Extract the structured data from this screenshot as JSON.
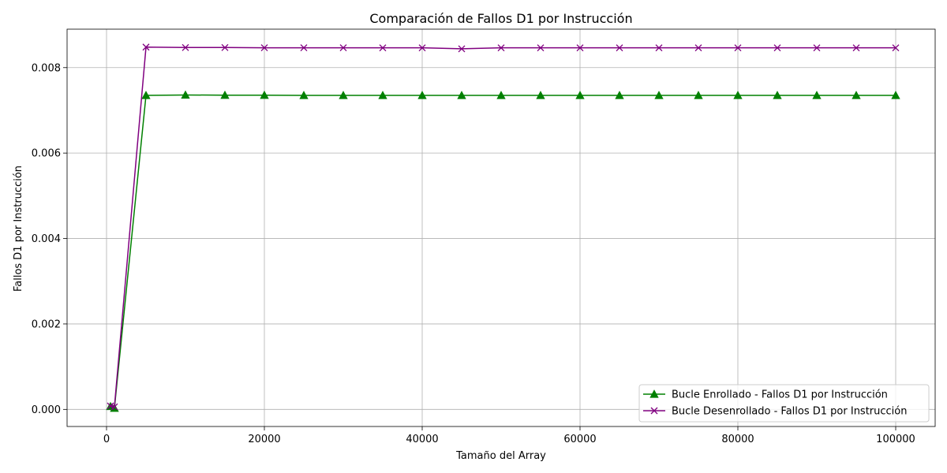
{
  "chart_data": {
    "type": "line",
    "title": "Comparación de Fallos D1 por Instrucción",
    "xlabel": "Tamaño del Array",
    "ylabel": "Fallos D1 por Instrucción",
    "xlim": [
      -5000,
      105000
    ],
    "ylim": [
      -0.0004,
      0.0089
    ],
    "xticks": [
      0,
      20000,
      40000,
      60000,
      80000,
      100000
    ],
    "yticks": [
      0.0,
      0.002,
      0.004,
      0.006,
      0.008
    ],
    "xtick_labels": [
      "0",
      "20000",
      "40000",
      "60000",
      "80000",
      "100000"
    ],
    "ytick_labels": [
      "0.000",
      "0.002",
      "0.004",
      "0.006",
      "0.008"
    ],
    "grid": true,
    "legend_position": "bottom-right",
    "x": [
      500,
      1000,
      5000,
      10000,
      15000,
      20000,
      25000,
      30000,
      35000,
      40000,
      45000,
      50000,
      55000,
      60000,
      65000,
      70000,
      75000,
      80000,
      85000,
      90000,
      95000,
      100000
    ],
    "series": [
      {
        "name": "Bucle Enrollado - Fallos D1 por Instrucción",
        "color": "#008000",
        "marker": "triangle",
        "values": [
          7e-05,
          3e-05,
          0.00735,
          0.00736,
          0.007355,
          0.007355,
          0.00735,
          0.00735,
          0.00735,
          0.00735,
          0.00735,
          0.00735,
          0.00735,
          0.00735,
          0.00735,
          0.00735,
          0.00735,
          0.00735,
          0.00735,
          0.00735,
          0.00735,
          0.00735
        ]
      },
      {
        "name": "Bucle Desenrollado - Fallos D1 por Instrucción",
        "color": "#800080",
        "marker": "x",
        "values": [
          8e-05,
          6e-05,
          0.00848,
          0.00847,
          0.00847,
          0.008465,
          0.008465,
          0.008465,
          0.008463,
          0.008463,
          0.00844,
          0.008463,
          0.008463,
          0.008463,
          0.008463,
          0.008463,
          0.008463,
          0.008463,
          0.008463,
          0.008463,
          0.008463,
          0.008463
        ]
      }
    ]
  }
}
